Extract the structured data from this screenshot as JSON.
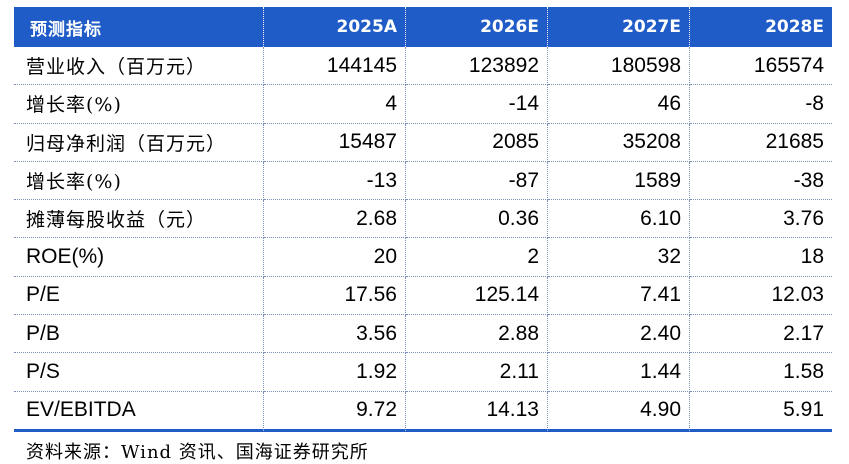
{
  "table": {
    "headers": [
      "预测指标",
      "2025A",
      "2026E",
      "2027E",
      "2028E"
    ],
    "rows": [
      {
        "label": "营业收入（百万元）",
        "values": [
          "144145",
          "123892",
          "180598",
          "165574"
        ]
      },
      {
        "label": "增长率(%)",
        "values": [
          "4",
          "-14",
          "46",
          "-8"
        ]
      },
      {
        "label": "归母净利润（百万元）",
        "values": [
          "15487",
          "2085",
          "35208",
          "21685"
        ]
      },
      {
        "label": "增长率(%)",
        "values": [
          "-13",
          "-87",
          "1589",
          "-38"
        ]
      },
      {
        "label": "摊薄每股收益（元）",
        "values": [
          "2.68",
          "0.36",
          "6.10",
          "3.76"
        ]
      },
      {
        "label": "ROE(%)",
        "values": [
          "20",
          "2",
          "32",
          "18"
        ]
      },
      {
        "label": "P/E",
        "values": [
          "17.56",
          "125.14",
          "7.41",
          "12.03"
        ]
      },
      {
        "label": "P/B",
        "values": [
          "3.56",
          "2.88",
          "2.40",
          "2.17"
        ]
      },
      {
        "label": "P/S",
        "values": [
          "1.92",
          "2.11",
          "1.44",
          "1.58"
        ]
      },
      {
        "label": "EV/EBITDA",
        "values": [
          "9.72",
          "14.13",
          "4.90",
          "5.91"
        ]
      }
    ]
  },
  "source": "资料来源：Wind 资讯、国海证券研究所",
  "colors": {
    "header_bg": "#1f5cc7",
    "header_text": "#ffffff",
    "rule": "#1f5cc7"
  }
}
